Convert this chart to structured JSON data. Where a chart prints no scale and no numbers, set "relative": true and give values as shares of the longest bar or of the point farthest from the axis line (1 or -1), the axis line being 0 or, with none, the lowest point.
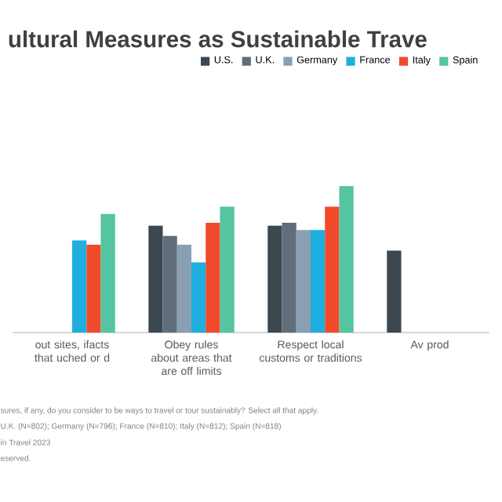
{
  "chart_data": {
    "type": "bar",
    "title": "ultural Measures as Sustainable Trave",
    "categories": [
      "out sites, ifacts that uched or d",
      "Obey rules about areas that are off limits",
      "Respect local customs or traditions",
      "Av prod"
    ],
    "series": [
      {
        "name": "U.S.",
        "color": "#3d4750",
        "values": [
          null,
          0.73,
          0.73,
          0.56
        ]
      },
      {
        "name": "U.K.",
        "color": "#5f6e7a",
        "values": [
          null,
          0.66,
          0.75,
          null
        ]
      },
      {
        "name": "Germany",
        "color": "#8a9fb2",
        "values": [
          null,
          0.6,
          0.7,
          null
        ]
      },
      {
        "name": "France",
        "color": "#1eaee0",
        "values": [
          0.63,
          0.48,
          0.7,
          null
        ]
      },
      {
        "name": "Italy",
        "color": "#f04a2a",
        "values": [
          0.6,
          0.75,
          0.86,
          null
        ]
      },
      {
        "name": "Spain",
        "color": "#55c4a0",
        "values": [
          0.81,
          0.86,
          1,
          null
        ]
      }
    ],
    "relative": true,
    "legend": "top right",
    "annotations": [
      "sures, if any, do you consider to be ways to travel or tour sustainably? Select all that apply.",
      "U.K. (N=802); Germany (N=796); France (N=810); Italy (N=812); Spain (N=818)",
      "in Travel 2023",
      "eserved."
    ]
  }
}
